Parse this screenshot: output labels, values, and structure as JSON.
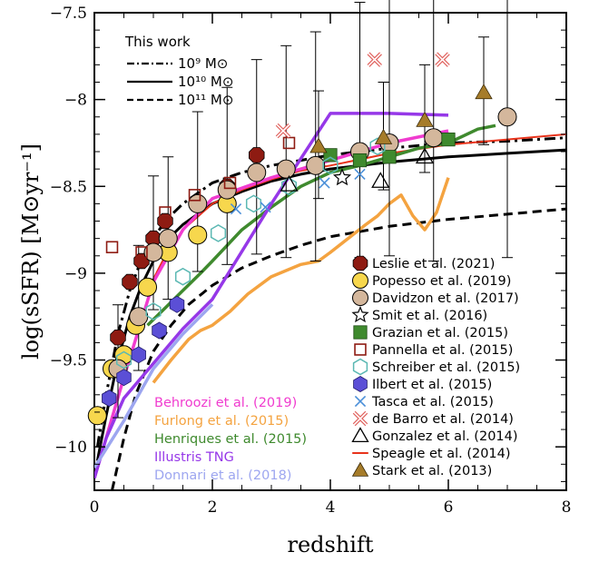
{
  "chart_data": {
    "type": "scatter",
    "xlabel": "redshift",
    "ylabel": "log(sSFR) [M⊙yr⁻¹]",
    "xlim": [
      0,
      8
    ],
    "ylim": [
      -10.25,
      -7.5
    ],
    "xticks": [
      0,
      2,
      4,
      6,
      8
    ],
    "xtick_labels": [
      "0",
      "2",
      "4",
      "6",
      "8"
    ],
    "yticks": [
      -10,
      -9.5,
      -9,
      -8.5,
      -8,
      -7.5
    ],
    "ytick_labels": [
      "−10",
      "−9.5",
      "−9",
      "−8.5",
      "−8",
      "−7.5"
    ],
    "grid": false,
    "inset_legend": {
      "title": "This work",
      "entries": [
        {
          "label": "10⁹ M⊙",
          "style": "dashdot"
        },
        {
          "label": "10¹⁰ M⊙",
          "style": "solid"
        },
        {
          "label": "10¹¹ M⊙",
          "style": "dashed"
        }
      ]
    },
    "model_lines": [
      {
        "name": "this-work-1e9",
        "style": "dashdot",
        "color": "#000000",
        "x": [
          0.05,
          0.2,
          0.4,
          0.6,
          0.8,
          1,
          1.2,
          1.5,
          2,
          2.5,
          3,
          3.5,
          4,
          5,
          6,
          7,
          8
        ],
        "y": [
          -10.0,
          -9.7,
          -9.35,
          -9.1,
          -8.92,
          -8.8,
          -8.7,
          -8.6,
          -8.48,
          -8.42,
          -8.38,
          -8.35,
          -8.32,
          -8.28,
          -8.25,
          -8.24,
          -8.22
        ]
      },
      {
        "name": "this-work-1e10",
        "style": "solid",
        "color": "#000000",
        "x": [
          0.05,
          0.2,
          0.4,
          0.6,
          0.8,
          1,
          1.2,
          1.5,
          2,
          2.5,
          3,
          3.5,
          4,
          5,
          6,
          7,
          8
        ],
        "y": [
          -10.08,
          -9.82,
          -9.5,
          -9.25,
          -9.07,
          -8.93,
          -8.82,
          -8.72,
          -8.6,
          -8.53,
          -8.47,
          -8.43,
          -8.4,
          -8.36,
          -8.33,
          -8.31,
          -8.29
        ]
      },
      {
        "name": "this-work-1e11",
        "style": "dashed",
        "color": "#000000",
        "x": [
          0.3,
          0.5,
          0.7,
          1,
          1.3,
          1.6,
          2,
          2.5,
          3,
          3.5,
          4,
          5,
          6,
          7,
          8
        ],
        "y": [
          -10.25,
          -9.95,
          -9.7,
          -9.45,
          -9.3,
          -9.18,
          -9.07,
          -8.97,
          -8.9,
          -8.84,
          -8.79,
          -8.73,
          -8.69,
          -8.66,
          -8.63
        ]
      },
      {
        "name": "Speagle et al. (2014)",
        "style": "solid",
        "color": "#e8331b",
        "x": [
          0.9,
          1.2,
          1.5,
          2,
          2.5,
          3,
          3.5,
          4,
          5,
          6,
          7,
          8
        ],
        "y": [
          -9.1,
          -8.9,
          -8.75,
          -8.6,
          -8.52,
          -8.46,
          -8.41,
          -8.38,
          -8.31,
          -8.26,
          -8.23,
          -8.2
        ]
      },
      {
        "name": "Behroozi et al. (2019)",
        "style": "solid",
        "color": "#f03ccf",
        "x": [
          0,
          0.5,
          1,
          1.5,
          2,
          3,
          4,
          5,
          6
        ],
        "y": [
          -10.18,
          -9.6,
          -9.05,
          -8.75,
          -8.57,
          -8.45,
          -8.35,
          -8.25,
          -8.18
        ]
      },
      {
        "name": "Furlong et al. (2015)",
        "style": "solid",
        "color": "#f4a340",
        "x": [
          1.0,
          1.3,
          1.6,
          1.8,
          2.0,
          2.3,
          2.6,
          3.0,
          3.5,
          3.8,
          4.0,
          4.3,
          4.6,
          4.8,
          5.0,
          5.2,
          5.4,
          5.6,
          5.8,
          6.0
        ],
        "y": [
          -9.63,
          -9.5,
          -9.38,
          -9.33,
          -9.3,
          -9.22,
          -9.12,
          -9.02,
          -8.95,
          -8.93,
          -8.88,
          -8.8,
          -8.72,
          -8.67,
          -8.6,
          -8.55,
          -8.67,
          -8.75,
          -8.65,
          -8.45
        ]
      },
      {
        "name": "Henriques et al. (2015)",
        "style": "solid",
        "color": "#3f8a2e",
        "x": [
          0.9,
          1.2,
          1.5,
          1.8,
          2.0,
          2.5,
          3.0,
          3.5,
          4.0,
          4.5,
          5.0,
          5.5,
          6.0,
          6.5,
          6.8
        ],
        "y": [
          -9.3,
          -9.2,
          -9.1,
          -9.0,
          -8.93,
          -8.75,
          -8.62,
          -8.5,
          -8.42,
          -8.38,
          -8.33,
          -8.28,
          -8.25,
          -8.17,
          -8.15
        ]
      },
      {
        "name": "Illustris TNG",
        "style": "solid",
        "color": "#9638e8",
        "x": [
          0,
          0.2,
          0.5,
          1,
          1.5,
          2,
          3,
          4,
          5,
          6
        ],
        "y": [
          -10.18,
          -9.95,
          -9.72,
          -9.52,
          -9.32,
          -9.15,
          -8.6,
          -8.08,
          -8.08,
          -8.09
        ]
      },
      {
        "name": "Donnari et al. (2018)",
        "style": "solid",
        "color": "#9da6f0",
        "x": [
          0,
          0.5,
          1,
          1.5,
          2
        ],
        "y": [
          -10.12,
          -9.85,
          -9.55,
          -9.35,
          -9.18
        ]
      }
    ],
    "line_labels": [
      {
        "text": "Behroozi et al. (2019)",
        "color": "#f03ccf"
      },
      {
        "text": "Furlong et al. (2015)",
        "color": "#f4a340"
      },
      {
        "text": "Henriques et al. (2015)",
        "color": "#3f8a2e"
      },
      {
        "text": "Illustris TNG",
        "color": "#9638e8"
      },
      {
        "text": "Donnari et al. (2018)",
        "color": "#9da6f0"
      }
    ],
    "series": [
      {
        "name": "Leslie et al. (2021)",
        "marker": "octagon",
        "color": "#8e1b12",
        "x": [
          0.4,
          0.6,
          0.8,
          1.0,
          1.2,
          1.75,
          2.25,
          2.75
        ],
        "y": [
          -9.37,
          -9.05,
          -8.93,
          -8.8,
          -8.7,
          -8.6,
          -8.5,
          -8.32
        ]
      },
      {
        "name": "Popesso et al. (2019)",
        "marker": "circle",
        "color": "#f7d74d",
        "x": [
          0.05,
          0.3,
          0.5,
          0.7,
          0.9,
          1.25,
          1.75,
          2.25
        ],
        "y": [
          -9.82,
          -9.55,
          -9.47,
          -9.3,
          -9.08,
          -8.88,
          -8.78,
          -8.6
        ]
      },
      {
        "name": "Davidzon et al. (2017)",
        "marker": "circle",
        "color": "#d4b79c",
        "x": [
          0.4,
          0.75,
          1.0,
          1.25,
          1.75,
          2.25,
          2.75,
          3.25,
          3.75,
          4.5,
          5.0,
          5.75,
          7.0
        ],
        "y": [
          -9.55,
          -9.25,
          -8.88,
          -8.8,
          -8.6,
          -8.52,
          -8.42,
          -8.4,
          -8.38,
          -8.3,
          -8.25,
          -8.22,
          -8.1
        ]
      },
      {
        "name": "Smit et al. (2016)",
        "marker": "star-open",
        "color": "#000000",
        "x": [
          4.2
        ],
        "y": [
          -8.45
        ]
      },
      {
        "name": "Grazian et al. (2015)",
        "marker": "square",
        "color": "#3f8a2e",
        "x": [
          4.0,
          4.5,
          5.0,
          6.0
        ],
        "y": [
          -8.32,
          -8.35,
          -8.33,
          -8.23
        ]
      },
      {
        "name": "Pannella et al. (2015)",
        "marker": "square-open",
        "color": "#8e1b12",
        "x": [
          0.3,
          0.8,
          1.2,
          1.7,
          2.3,
          3.3
        ],
        "y": [
          -8.85,
          -8.88,
          -8.65,
          -8.55,
          -8.48,
          -8.25
        ]
      },
      {
        "name": "Schreiber et al. (2015)",
        "marker": "hexagon-open",
        "color": "#5bb8b3",
        "x": [
          0.5,
          1.0,
          1.5,
          2.1,
          2.7,
          3.3,
          4.0,
          4.8
        ],
        "y": [
          -9.5,
          -9.22,
          -9.02,
          -8.77,
          -8.6,
          -8.5,
          -8.38,
          -8.27
        ]
      },
      {
        "name": "Ilbert et al. (2015)",
        "marker": "hexagon",
        "color": "#5b4fd6",
        "x": [
          0.25,
          0.5,
          0.75,
          1.1,
          1.4
        ],
        "y": [
          -9.72,
          -9.6,
          -9.47,
          -9.33,
          -9.18
        ]
      },
      {
        "name": "Tasca et al. (2015)",
        "marker": "x",
        "color": "#4a8fd8",
        "x": [
          2.4,
          2.9,
          3.9,
          4.5
        ],
        "y": [
          -8.63,
          -8.62,
          -8.48,
          -8.43
        ]
      },
      {
        "name": "de Barro et al. (2014)",
        "marker": "cross-open",
        "color": "#e0605c",
        "x": [
          3.2,
          4.75,
          5.9
        ],
        "y": [
          -8.18,
          -7.77,
          -7.77
        ]
      },
      {
        "name": "Gonzalez et al. (2014)",
        "marker": "triangle-open",
        "color": "#000000",
        "x": [
          3.3,
          4.85,
          5.6
        ],
        "y": [
          -8.49,
          -8.47,
          -8.33
        ]
      },
      {
        "name": "Speagle et al. (2014)",
        "marker": "line",
        "color": "#e8331b",
        "x": [],
        "y": []
      },
      {
        "name": "Stark et al. (2013)",
        "marker": "triangle",
        "color": "#a67c2a",
        "x": [
          3.8,
          4.9,
          5.6,
          6.6
        ],
        "y": [
          -8.27,
          -8.22,
          -8.12,
          -7.96
        ]
      }
    ]
  }
}
